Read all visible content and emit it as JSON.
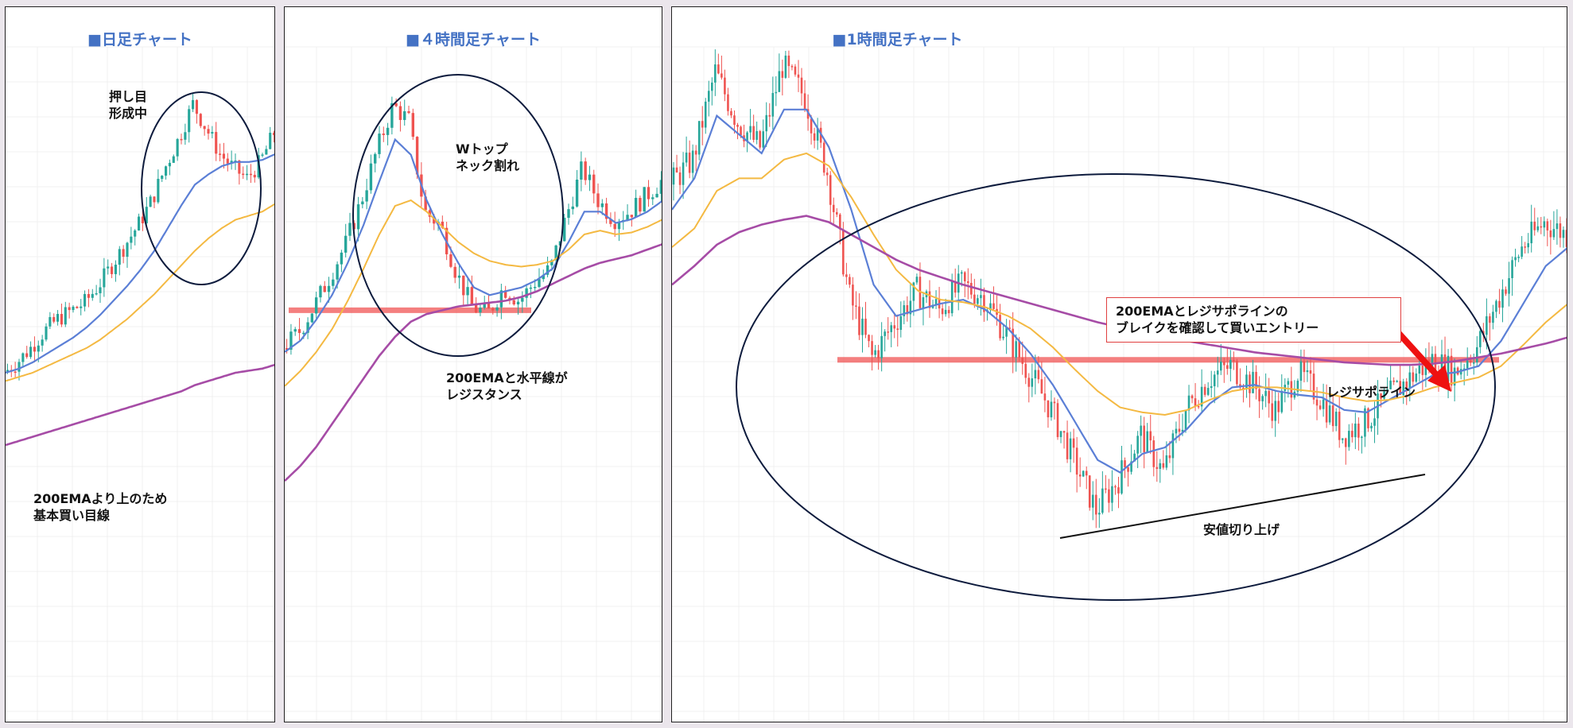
{
  "colors": {
    "up": "#26a69a",
    "down": "#ef5350",
    "ema_short": "#5b7fd6",
    "ema_mid": "#f4b942",
    "ema_200": "#a64ca6",
    "resistance": "#f05454",
    "title": "#4472c4",
    "ellipse": "#0d1b3d",
    "arrow": "#ee1111"
  },
  "panels": [
    {
      "title": "■日足チャート",
      "notes": [
        {
          "lines": [
            "押し目",
            "形成中"
          ]
        },
        {
          "lines": [
            "200EMAより上のため",
            "基本買い目線"
          ]
        }
      ]
    },
    {
      "title": "■４時間足チャート",
      "notes": [
        {
          "lines": [
            "Wトップ",
            "ネック割れ"
          ]
        },
        {
          "lines": [
            "200EMAと水平線が",
            "レジスタンス"
          ]
        }
      ]
    },
    {
      "title": "■1時間足チャート",
      "notes": [
        {
          "lines": [
            "200EMAとレジサポラインの",
            "ブレイクを確認して買いエントリー"
          ]
        },
        {
          "lines": [
            "レジサポライン"
          ]
        },
        {
          "lines": [
            "安値切り上げ"
          ]
        }
      ]
    }
  ],
  "chart_data": [
    {
      "type": "line",
      "title": "■日足チャート",
      "note": "candlestick price chart with moving averages (values estimated, arbitrary price units)",
      "x": [
        0,
        1,
        2,
        3,
        4,
        5,
        6,
        7,
        8,
        9,
        10,
        11,
        12,
        13,
        14,
        15,
        16,
        17,
        18,
        19,
        20
      ],
      "series": [
        {
          "name": "price",
          "values": [
            10,
            15,
            22,
            30,
            36,
            40,
            44,
            52,
            62,
            72,
            82,
            94,
            110,
            124,
            140,
            128,
            116,
            109,
            104,
            112,
            126
          ]
        },
        {
          "name": "EMA",
          "values": [
            10,
            12,
            15,
            19,
            23,
            27,
            32,
            38,
            45,
            52,
            60,
            69,
            80,
            91,
            101,
            106,
            110,
            112,
            112,
            113,
            116
          ]
        },
        {
          "name": "EMA",
          "values": [
            6,
            8,
            10,
            13,
            16,
            19,
            22,
            26,
            31,
            36,
            42,
            48,
            55,
            62,
            69,
            75,
            80,
            84,
            86,
            88,
            92
          ]
        },
        {
          "name": "200EMA",
          "values": [
            -25,
            -23,
            -21,
            -19,
            -17,
            -15,
            -13,
            -11,
            -9,
            -7,
            -5,
            -3,
            -1,
            1,
            4,
            6,
            8,
            10,
            11,
            12,
            14
          ]
        }
      ]
    },
    {
      "type": "line",
      "title": "■４時間足チャート",
      "note": "candlestick price chart with moving averages and horizontal resistance (values estimated)",
      "x": [
        0,
        1,
        2,
        3,
        4,
        5,
        6,
        7,
        8,
        9,
        10,
        11,
        12,
        13,
        14,
        15,
        16,
        17,
        18,
        19,
        20,
        21,
        22,
        23,
        24
      ],
      "series": [
        {
          "name": "price",
          "values": [
            40,
            48,
            62,
            78,
            95,
            118,
            145,
            168,
            160,
            112,
            105,
            80,
            62,
            58,
            72,
            65,
            75,
            82,
            110,
            135,
            118,
            108,
            112,
            120,
            128
          ]
        },
        {
          "name": "EMA",
          "values": [
            38,
            44,
            55,
            68,
            85,
            105,
            128,
            150,
            142,
            118,
            100,
            85,
            72,
            68,
            70,
            72,
            76,
            82,
            96,
            112,
            112,
            106,
            108,
            112,
            118
          ]
        },
        {
          "name": "EMA",
          "values": [
            20,
            28,
            38,
            50,
            65,
            82,
            100,
            115,
            118,
            112,
            104,
            96,
            90,
            86,
            84,
            83,
            84,
            86,
            92,
            100,
            102,
            100,
            101,
            104,
            108
          ]
        },
        {
          "name": "200EMA",
          "values": [
            -30,
            -22,
            -12,
            0,
            12,
            24,
            36,
            46,
            54,
            58,
            60,
            62,
            63,
            64,
            65,
            67,
            70,
            74,
            78,
            82,
            85,
            87,
            89,
            92,
            95
          ]
        }
      ],
      "resistance": 60
    },
    {
      "type": "line",
      "title": "■1時間足チャート",
      "note": "candlestick price chart with moving averages, support/resistance line and rising lows trendline (values estimated)",
      "x": [
        0,
        1,
        2,
        3,
        4,
        5,
        6,
        7,
        8,
        9,
        10,
        11,
        12,
        13,
        14,
        15,
        16,
        17,
        18,
        19,
        20,
        21,
        22,
        23,
        24,
        25,
        26,
        27,
        28,
        29,
        30,
        31,
        32,
        33,
        34,
        35,
        36,
        37,
        38,
        39,
        40
      ],
      "series": [
        {
          "name": "price",
          "values": [
            140,
            160,
            230,
            190,
            170,
            235,
            210,
            150,
            50,
            2,
            30,
            55,
            40,
            60,
            50,
            20,
            -10,
            -40,
            -80,
            -120,
            -95,
            -60,
            -90,
            -40,
            -15,
            -5,
            -20,
            -40,
            -10,
            -30,
            -60,
            -50,
            -30,
            -15,
            0,
            -10,
            10,
            50,
            90,
            110,
            100
          ]
        },
        {
          "name": "EMA",
          "values": [
            120,
            145,
            195,
            180,
            165,
            200,
            200,
            170,
            120,
            60,
            35,
            40,
            45,
            48,
            40,
            25,
            5,
            -20,
            -50,
            -80,
            -90,
            -75,
            -70,
            -55,
            -35,
            -22,
            -20,
            -25,
            -28,
            -30,
            -40,
            -42,
            -32,
            -22,
            -12,
            -10,
            -5,
            15,
            45,
            75,
            90
          ]
        },
        {
          "name": "EMA",
          "values": [
            90,
            105,
            135,
            145,
            145,
            160,
            165,
            155,
            130,
            100,
            72,
            55,
            48,
            46,
            42,
            35,
            25,
            10,
            -8,
            -25,
            -38,
            -42,
            -44,
            -40,
            -32,
            -25,
            -22,
            -22,
            -24,
            -26,
            -30,
            -33,
            -32,
            -28,
            -22,
            -18,
            -14,
            -5,
            12,
            30,
            45
          ]
        },
        {
          "name": "200EMA",
          "values": [
            60,
            75,
            92,
            102,
            108,
            112,
            115,
            110,
            100,
            90,
            80,
            72,
            66,
            60,
            55,
            50,
            45,
            40,
            35,
            30,
            26,
            22,
            18,
            15,
            12,
            9,
            6,
            4,
            2,
            0,
            -2,
            -3,
            -4,
            -4,
            -3,
            -1,
            2,
            5,
            9,
            13,
            18
          ]
        }
      ],
      "resistance": 0
    }
  ]
}
